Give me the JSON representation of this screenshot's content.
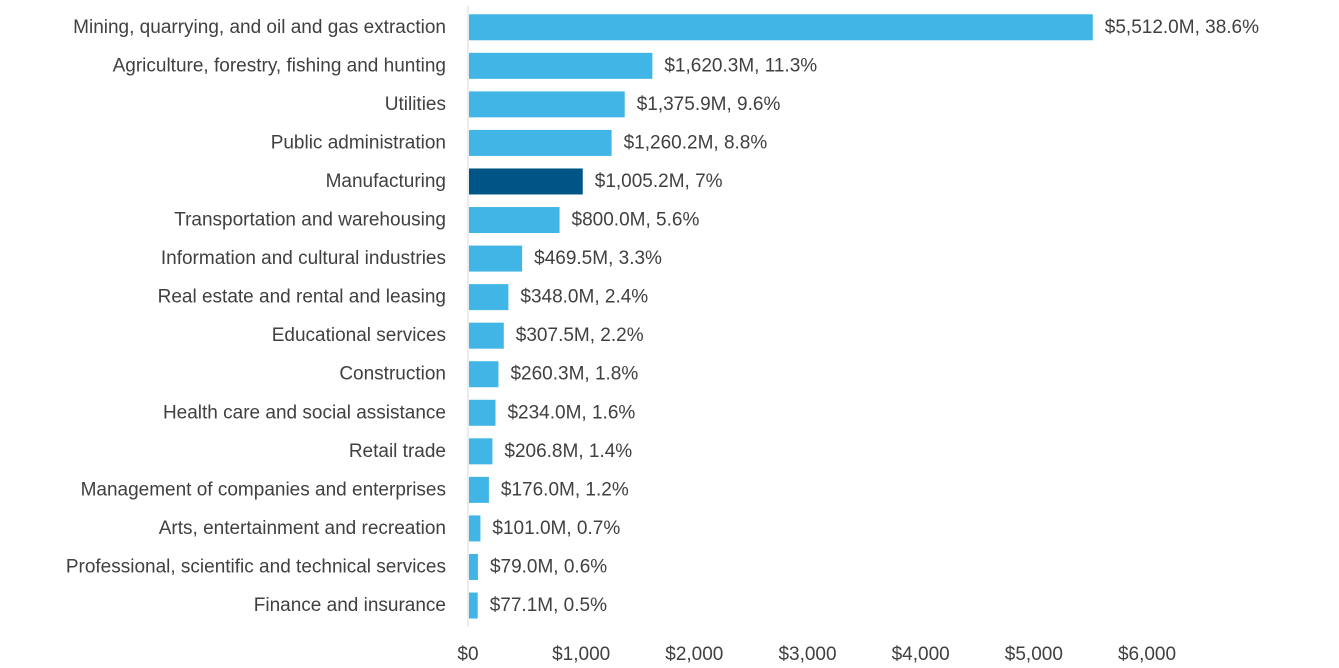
{
  "chart_data": {
    "type": "bar",
    "orientation": "horizontal",
    "title": "",
    "xlabel": "",
    "ylabel": "",
    "categories": [
      "Mining, quarrying, and oil and gas extraction",
      "Agriculture, forestry, fishing and hunting",
      "Utilities",
      "Public administration",
      "Manufacturing",
      "Transportation and warehousing",
      "Information and cultural industries",
      "Real estate and rental and leasing",
      "Educational services",
      "Construction",
      "Health care and social assistance",
      "Retail trade",
      "Management of companies and enterprises",
      "Arts, entertainment and recreation",
      "Professional, scientific and technical services",
      "Finance and insurance"
    ],
    "values": [
      5512.0,
      1620.3,
      1375.9,
      1260.2,
      1005.2,
      800.0,
      469.5,
      348.0,
      307.5,
      260.3,
      234.0,
      206.8,
      176.0,
      101.0,
      79.0,
      77.1
    ],
    "data_labels": [
      "$5,512.0M, 38.6%",
      "$1,620.3M, 11.3%",
      "$1,375.9M, 9.6%",
      "$1,260.2M, 8.8%",
      "$1,005.2M, 7%",
      "$800.0M, 5.6%",
      "$469.5M, 3.3%",
      "$348.0M, 2.4%",
      "$307.5M, 2.2%",
      "$260.3M, 1.8%",
      "$234.0M, 1.6%",
      "$206.8M, 1.4%",
      "$176.0M, 1.2%",
      "$101.0M, 0.7%",
      "$79.0M, 0.6%",
      "$77.1M, 0.5%"
    ],
    "xlim": [
      0,
      6000
    ],
    "x_ticks": [
      0,
      1000,
      2000,
      3000,
      4000,
      5000,
      6000
    ],
    "x_tick_labels": [
      "$0",
      "$1,000",
      "$2,000",
      "$3,000",
      "$4,000",
      "$5,000",
      "$6,000"
    ],
    "grid": false,
    "legend": "none",
    "highlight_category": "Manufacturing",
    "colors": {
      "bar": "#41b6e6",
      "highlight": "#005587",
      "axis": "#d9d9d9",
      "text": "#404040"
    }
  }
}
